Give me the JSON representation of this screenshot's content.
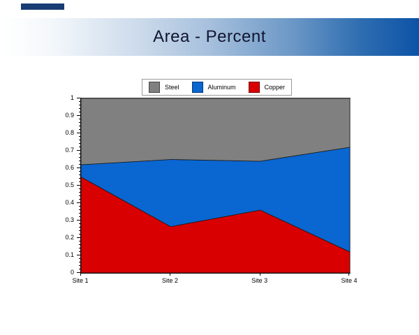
{
  "page": {
    "background": "#FFFFFF"
  },
  "accent_bar": {
    "color": "#1A3C74"
  },
  "header": {
    "title": "Area - Percent",
    "text_color": "#121530",
    "gradient_left": "#FFFFFF",
    "gradient_mid": "#A6C0DD",
    "gradient_right": "#0D53A6"
  },
  "chart_data": {
    "type": "area",
    "stacked": true,
    "normalized": "percent",
    "title": "Area - Percent",
    "categories": [
      "Site 1",
      "Site 2",
      "Site 3",
      "Site 4"
    ],
    "series": [
      {
        "name": "Copper",
        "color": "#D80000",
        "values": [
          0.55,
          0.265,
          0.36,
          0.12
        ]
      },
      {
        "name": "Aluminum",
        "color": "#0A66D0",
        "values": [
          0.07,
          0.385,
          0.28,
          0.6
        ]
      },
      {
        "name": "Steel",
        "color": "#808080",
        "values": [
          0.38,
          0.35,
          0.36,
          0.28
        ]
      }
    ],
    "stack_order_bottom_to_top": [
      "Copper",
      "Aluminum",
      "Steel"
    ],
    "cumulative_boundaries": {
      "copper_top": [
        0.55,
        0.265,
        0.36,
        0.12
      ],
      "aluminum_top": [
        0.62,
        0.65,
        0.64,
        0.72
      ],
      "steel_top": [
        1.0,
        1.0,
        1.0,
        1.0
      ]
    },
    "legend": {
      "position": "top-center",
      "entries": [
        {
          "label": "Steel",
          "color": "#808080"
        },
        {
          "label": "Aluminum",
          "color": "#0A66D0"
        },
        {
          "label": "Copper",
          "color": "#D80000"
        }
      ]
    },
    "y_axis": {
      "min": 0,
      "max": 1,
      "major_step": 0.1,
      "minor_ticks_per_major": 4,
      "tick_labels": [
        "1",
        "0.9",
        "0.8",
        "0.7",
        "0.6",
        "0.5",
        "0.4",
        "0.3",
        "0.2",
        "0.1",
        "0"
      ]
    },
    "x_axis": {
      "tick_labels": [
        "Site 1",
        "Site 2",
        "Site 3",
        "Site 4"
      ]
    },
    "grid": false,
    "outline_color": "#1A1A1A"
  }
}
